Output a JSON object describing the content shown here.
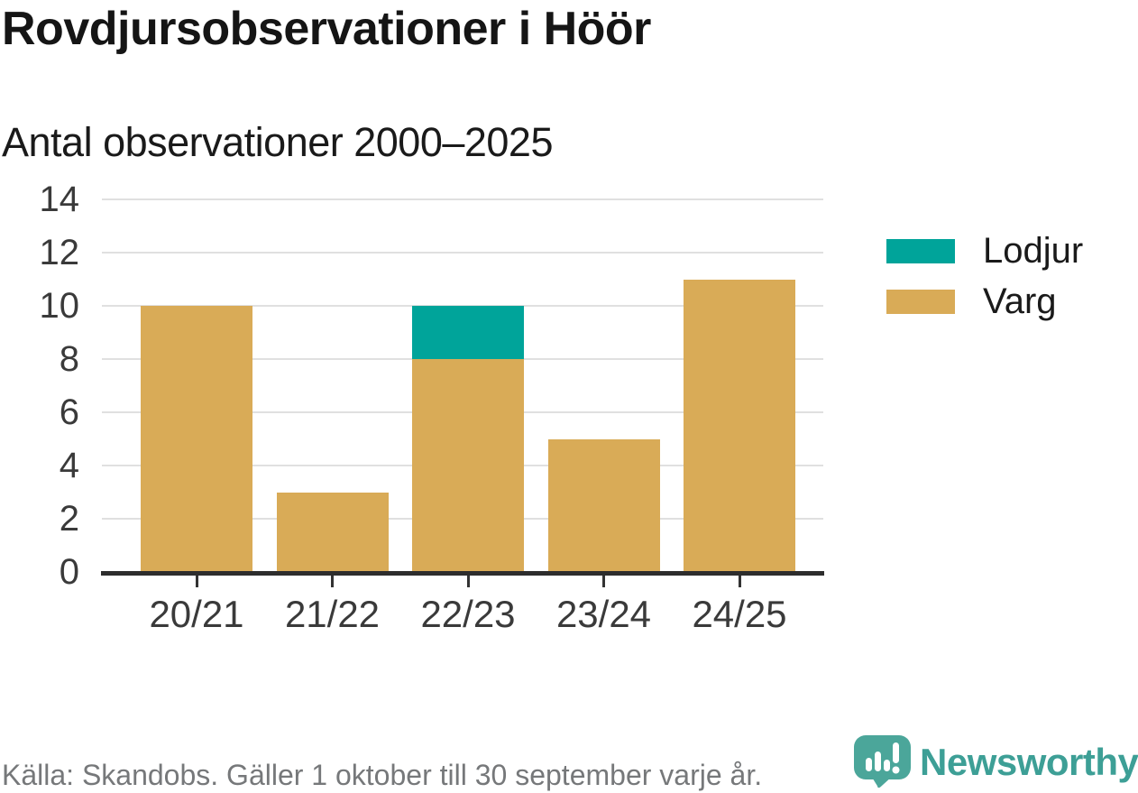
{
  "chart_data": {
    "type": "bar",
    "stacked": true,
    "title": "Rovdjursobservationer i Höör",
    "subtitle": "Antal observationer 2000–2025",
    "categories": [
      "20/21",
      "21/22",
      "22/23",
      "23/24",
      "24/25"
    ],
    "series": [
      {
        "name": "Lodjur",
        "color": "#00a49a",
        "values": [
          0,
          0,
          2,
          0,
          0
        ]
      },
      {
        "name": "Varg",
        "color": "#d9ab57",
        "values": [
          10,
          3,
          8,
          5,
          11
        ]
      }
    ],
    "stack_order_bottom_to_top": [
      "Varg",
      "Lodjur"
    ],
    "totals": [
      10,
      3,
      10,
      5,
      11
    ],
    "y_ticks": [
      0,
      2,
      4,
      6,
      8,
      10,
      12,
      14
    ],
    "ylim": [
      0,
      14
    ],
    "xlabel": "",
    "ylabel": "",
    "grid": "horizontal",
    "legend_position": "right"
  },
  "footer": {
    "source": "Källa: Skandobs. Gäller 1 oktober till 30 september varje år.",
    "brand": "Newsworthy"
  },
  "colors": {
    "gridline": "#e0e0e0",
    "axis_line": "#2d2d2d",
    "tick_mark": "#333333",
    "axis_text": "#3a3a3a",
    "title_text": "#151515",
    "footer_text": "#76787a",
    "brand_teal": "#3d9f96",
    "logo_bubble": "#4ba69a"
  }
}
